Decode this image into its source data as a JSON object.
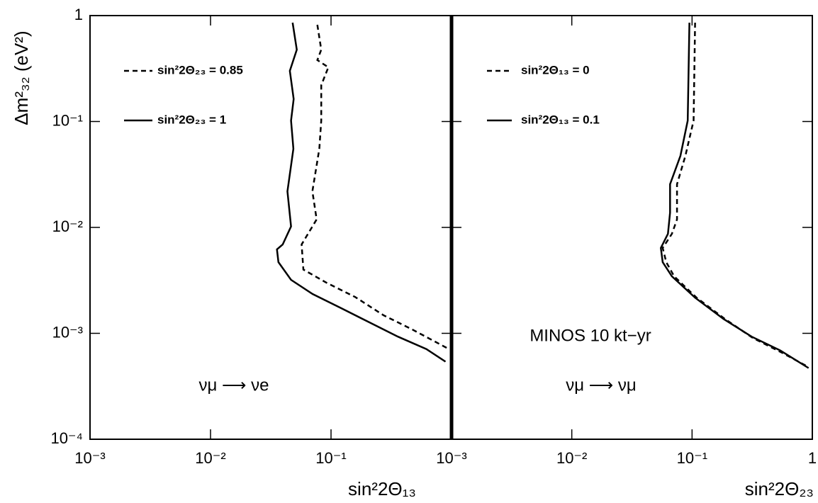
{
  "chart_data": [
    {
      "type": "line",
      "xscale": "log",
      "yscale": "log",
      "x_label": "sin²2Θ₁₃",
      "y_label": "Δm²₃₂ (eV²)",
      "annotations": [
        "νμ ⟶ νe"
      ],
      "xlim": [
        0.001,
        1
      ],
      "ylim": [
        0.0001,
        1
      ],
      "xticks": [
        {
          "value": 0.001,
          "label": "10⁻³"
        },
        {
          "value": 0.01,
          "label": "10⁻²"
        },
        {
          "value": 0.1,
          "label": "10⁻¹"
        }
      ],
      "yticks": [
        {
          "value": 0.0001,
          "label": "10⁻⁴"
        },
        {
          "value": 0.001,
          "label": "10⁻³"
        },
        {
          "value": 0.01,
          "label": "10⁻²"
        },
        {
          "value": 0.1,
          "label": "10⁻¹"
        },
        1
      ],
      "series": [
        {
          "name": "sin²2Θ₂₃ = 0.85",
          "color": "#000000",
          "dash": true,
          "x": [
            0.077,
            0.083,
            0.077,
            0.095,
            0.083,
            0.083,
            0.08,
            0.07,
            0.076,
            0.057,
            0.059,
            0.092,
            0.159,
            0.273,
            0.47,
            0.93
          ],
          "y": [
            0.818,
            0.477,
            0.38,
            0.325,
            0.22,
            0.102,
            0.0553,
            0.0219,
            0.0119,
            0.0069,
            0.004,
            0.003,
            0.0022,
            0.00148,
            0.00109,
            0.00072
          ]
        },
        {
          "name": "sin²2Θ₂₃ = 1",
          "color": "#000000",
          "dash": false,
          "x": [
            0.048,
            0.052,
            0.0455,
            0.049,
            0.0466,
            0.0487,
            0.0435,
            0.0466,
            0.0397,
            0.0356,
            0.0366,
            0.0466,
            0.0703,
            0.121,
            0.208,
            0.359,
            0.618,
            0.891
          ],
          "y": [
            0.857,
            0.477,
            0.301,
            0.163,
            0.102,
            0.0553,
            0.0219,
            0.0102,
            0.0069,
            0.0062,
            0.0047,
            0.0032,
            0.00235,
            0.00173,
            0.00127,
            0.00093,
            0.00071,
            0.00054
          ]
        }
      ]
    },
    {
      "type": "line",
      "xscale": "log",
      "yscale": "log",
      "x_label": "sin²2Θ₂₃",
      "annotations": [
        "MINOS 10 kt−yr",
        "νμ ⟶ νμ"
      ],
      "xlim": [
        0.001,
        1
      ],
      "ylim": [
        0.0001,
        1
      ],
      "xticks": [
        {
          "value": 0.001,
          "label": "10⁻³"
        },
        {
          "value": 0.01,
          "label": "10⁻²"
        },
        {
          "value": 0.1,
          "label": "10⁻¹"
        },
        1
      ],
      "series": [
        {
          "name": "sin²2Θ₁₃ = 0",
          "color": "#000000",
          "dash": true,
          "x": [
            0.106,
            0.103,
            0.088,
            0.075,
            0.075,
            0.068,
            0.057,
            0.061,
            0.071,
            0.109,
            0.187,
            0.322,
            0.555,
            0.93
          ],
          "y": [
            0.857,
            0.102,
            0.0474,
            0.0256,
            0.0119,
            0.0087,
            0.0064,
            0.0047,
            0.00345,
            0.00217,
            0.00137,
            0.0009,
            0.00066,
            0.00048
          ]
        },
        {
          "name": "sin²2Θ₁₃ = 0.1",
          "color": "#000000",
          "dash": false,
          "x": [
            0.095,
            0.092,
            0.08,
            0.0656,
            0.0656,
            0.063,
            0.055,
            0.057,
            0.068,
            0.106,
            0.182,
            0.313,
            0.54,
            0.93
          ],
          "y": [
            0.857,
            0.102,
            0.0474,
            0.0256,
            0.0138,
            0.0087,
            0.0064,
            0.0047,
            0.00345,
            0.00217,
            0.00137,
            0.00093,
            0.00069,
            0.00047
          ]
        }
      ]
    }
  ]
}
